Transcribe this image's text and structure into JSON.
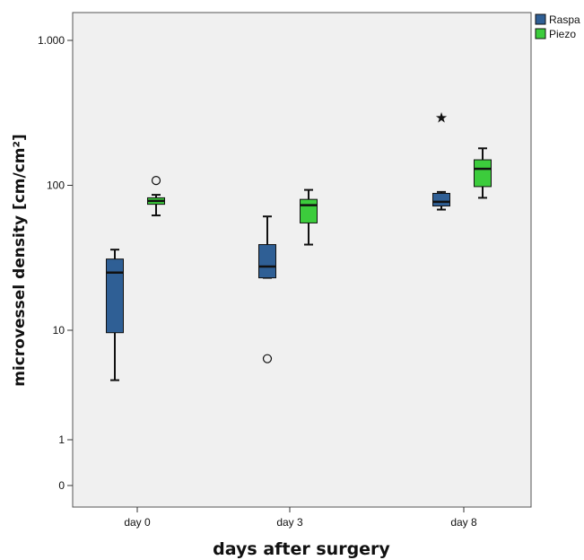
{
  "chart_data": {
    "type": "boxplot",
    "xlabel": "days after surgery",
    "ylabel": "microvessel density [cm/cm²]",
    "yscale": "log",
    "y_ticks": [
      {
        "value": 1000,
        "label": "1.000"
      },
      {
        "value": 100,
        "label": "100"
      },
      {
        "value": 10,
        "label": "10"
      },
      {
        "value": 1,
        "label": "1"
      },
      {
        "value": 0,
        "label": "0"
      }
    ],
    "categories": [
      "day 0",
      "day 3",
      "day 8"
    ],
    "legend": {
      "position": "top-right"
    },
    "series": [
      {
        "name": "Raspa",
        "color": "#2f5f95",
        "boxes": [
          {
            "category": "day 0",
            "min": 3.5,
            "q1": 9.5,
            "median": 25,
            "q3": 31,
            "max": 36,
            "outliers": [],
            "extremes": []
          },
          {
            "category": "day 3",
            "min": 5.5,
            "q1": 23,
            "median": 27.5,
            "q3": 39,
            "max": 61,
            "outliers": [
              5.5
            ],
            "extremes": []
          },
          {
            "category": "day 8",
            "min": 68,
            "q1": 72,
            "median": 77,
            "q3": 88,
            "max": 90,
            "outliers": [],
            "extremes": [
              295
            ]
          }
        ]
      },
      {
        "name": "Piezo",
        "color": "#3ccc3c",
        "boxes": [
          {
            "category": "day 0",
            "min": 62,
            "q1": 74,
            "median": 78,
            "q3": 82,
            "max": 86,
            "outliers": [
              108
            ],
            "extremes": []
          },
          {
            "category": "day 3",
            "min": 39,
            "q1": 55,
            "median": 73,
            "q3": 80,
            "max": 93,
            "outliers": [],
            "extremes": []
          },
          {
            "category": "day 8",
            "min": 82,
            "q1": 98,
            "median": 130,
            "q3": 150,
            "max": 180,
            "outliers": [],
            "extremes": []
          }
        ]
      }
    ]
  }
}
